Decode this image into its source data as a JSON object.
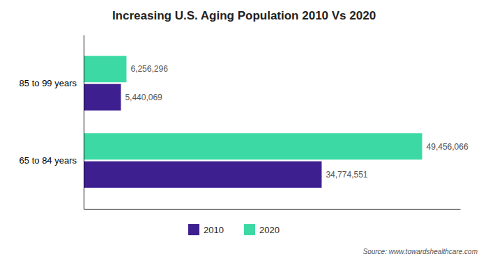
{
  "chart_data": {
    "type": "bar",
    "orientation": "horizontal",
    "title": "Increasing U.S. Aging Population 2010 Vs 2020",
    "categories": [
      "85 to 99 years",
      "65 to 84 years"
    ],
    "series": [
      {
        "name": "2010",
        "color": "#3d1f8f",
        "values": [
          5440069,
          34774551
        ],
        "value_labels": [
          "5,440,069",
          "34,774,551"
        ]
      },
      {
        "name": "2020",
        "color": "#3dd9a4",
        "values": [
          6256296,
          49456066
        ],
        "value_labels": [
          "6,256,296",
          "49,456,066"
        ]
      }
    ],
    "xlim": [
      0,
      55000000
    ],
    "tick_labels": "y",
    "grid": false,
    "data_labels": true,
    "legend": "bottom",
    "annotations": [
      "Source: www.towardshealthcare.com"
    ]
  }
}
